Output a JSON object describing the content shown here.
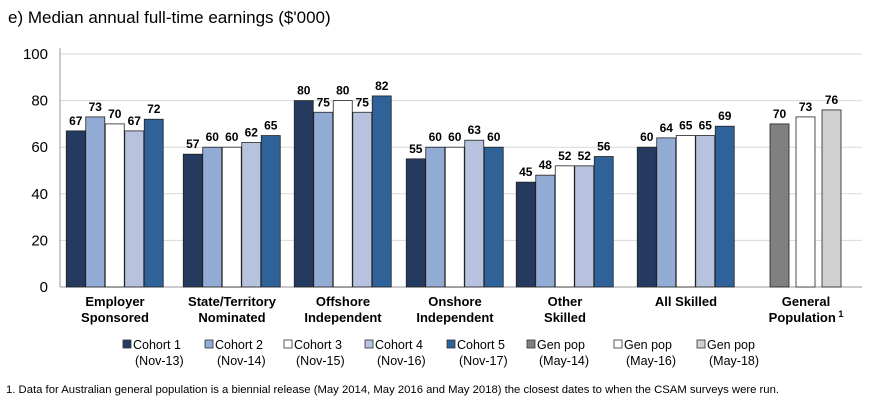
{
  "chart_data": {
    "type": "bar",
    "title": "e)   Median annual full-time earnings ($'000)",
    "ylim": [
      0,
      100
    ],
    "yticks": [
      0,
      20,
      40,
      60,
      80,
      100
    ],
    "grid": true,
    "legend_position": "bottom",
    "categories": [
      [
        "Employer",
        "Sponsored"
      ],
      [
        "State/Territory",
        "Nominated"
      ],
      [
        "Offshore",
        "Independent"
      ],
      [
        "Onshore",
        "Independent"
      ],
      [
        "Other",
        "Skilled"
      ],
      [
        "All Skilled"
      ],
      [
        "General",
        "Population"
      ]
    ],
    "category_superscripts": [
      "",
      "",
      "",
      "",
      "",
      "",
      "1"
    ],
    "series": [
      {
        "name": "Cohort 1",
        "sub": "(Nov-13)",
        "color": "#243a5e",
        "values": [
          67,
          57,
          80,
          55,
          45,
          60,
          null
        ]
      },
      {
        "name": "Cohort 2",
        "sub": "(Nov-14)",
        "color": "#93acd6",
        "values": [
          73,
          60,
          75,
          60,
          48,
          64,
          null
        ]
      },
      {
        "name": "Cohort 3",
        "sub": "(Nov-15)",
        "color": "#ffffff",
        "values": [
          70,
          60,
          80,
          60,
          52,
          65,
          null
        ]
      },
      {
        "name": "Cohort 4",
        "sub": "(Nov-16)",
        "color": "#b7c3de",
        "values": [
          67,
          62,
          75,
          63,
          52,
          65,
          null
        ]
      },
      {
        "name": "Cohort 5",
        "sub": "(Nov-17)",
        "color": "#2e6298",
        "values": [
          72,
          65,
          82,
          60,
          56,
          69,
          null
        ]
      },
      {
        "name": "Gen pop",
        "sub": "(May-14)",
        "color": "#808080",
        "values": [
          null,
          null,
          null,
          null,
          null,
          null,
          70
        ]
      },
      {
        "name": "Gen pop",
        "sub": "(May-16)",
        "color": "#ffffff",
        "values": [
          null,
          null,
          null,
          null,
          null,
          null,
          73
        ]
      },
      {
        "name": "Gen pop",
        "sub": "(May-18)",
        "color": "#d0d0d0",
        "values": [
          null,
          null,
          null,
          null,
          null,
          null,
          76
        ]
      }
    ]
  },
  "footnote": "1. Data for Australian general population is a biennial release (May 2014, May 2016 and May 2018) the closest dates to when the CSAM surveys were run."
}
